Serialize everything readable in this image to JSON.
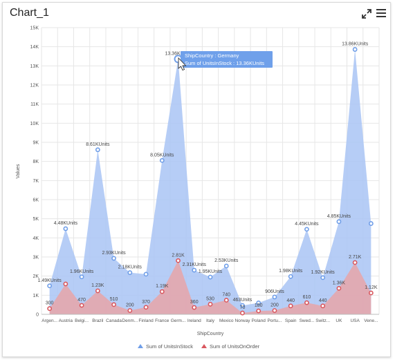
{
  "header": {
    "title": "Chart_1",
    "expand_icon": "expand-icon",
    "menu_icon": "hamburger-menu-icon"
  },
  "tooltip": {
    "line1": "ShipCountry : Germany",
    "line2": "Sum of UnitsInStock : 13.36KUnits"
  },
  "colors": {
    "instock_fill": "#a9c4f4",
    "instock_marker": "#6f9ee8",
    "onorder_fill": "#e8a4a8",
    "onorder_marker": "#d9575e",
    "tooltip_bg": "#6fa0ea",
    "grid": "#e6e6e6"
  },
  "chart_data": {
    "type": "area",
    "title": "",
    "xlabel": "ShipCountry",
    "ylabel": "Values",
    "ylim": [
      0,
      15000
    ],
    "yticks": [
      0,
      1000,
      2000,
      3000,
      4000,
      5000,
      6000,
      7000,
      8000,
      9000,
      10000,
      11000,
      12000,
      13000,
      14000,
      15000
    ],
    "ytick_labels": [
      "0",
      "1K",
      "2K",
      "3K",
      "4K",
      "5K",
      "6K",
      "7K",
      "8K",
      "9K",
      "10K",
      "11K",
      "12K",
      "13K",
      "14K",
      "15K"
    ],
    "categories": [
      "Argen...",
      "Austria",
      "Belgi...",
      "Brazil",
      "Canada",
      "Denm...",
      "Finland",
      "France",
      "Germ...",
      "Ireland",
      "Italy",
      "Mexico",
      "Norway",
      "Poland",
      "Portu...",
      "Spain",
      "Swed...",
      "Switz...",
      "UK",
      "USA",
      "Vene..."
    ],
    "grid": true,
    "legend_position": "bottom-center",
    "series": [
      {
        "name": "Sum of UnitsInStock",
        "values": [
          1490,
          4480,
          1960,
          8610,
          2930,
          2180,
          2100,
          8050,
          13360,
          2310,
          1950,
          2530,
          463,
          600,
          906,
          1980,
          4450,
          1920,
          4850,
          13860,
          4750
        ],
        "labels": [
          "1.49KUnits",
          "4.48KUnits",
          "1.96KUnits",
          "8.61KUnits",
          "2.93KUnits",
          "2.18KUnits",
          "",
          "8.05KUnits",
          "13.36KUnits",
          "2.31KUnits",
          "1.95KUnits",
          "2.53KUnits",
          "463Units",
          "",
          "906Units",
          "1.98KUnits",
          "4.45KUnits",
          "1.92KUnits",
          "4.85KUnits",
          "13.86KUnits",
          ""
        ]
      },
      {
        "name": "Sum of UnitsOnOrder",
        "values": [
          300,
          1590,
          470,
          1230,
          510,
          200,
          370,
          1190,
          2810,
          360,
          530,
          740,
          70,
          180,
          200,
          440,
          610,
          440,
          1360,
          2710,
          1120
        ],
        "labels": [
          "300",
          "",
          "470",
          "1.23K",
          "510",
          "200",
          "370",
          "1.19K",
          "2.81K",
          "360",
          "530",
          "740",
          "70",
          "180",
          "200",
          "440",
          "610",
          "440",
          "1.36K",
          "2.71K",
          "1.12K"
        ]
      }
    ]
  }
}
